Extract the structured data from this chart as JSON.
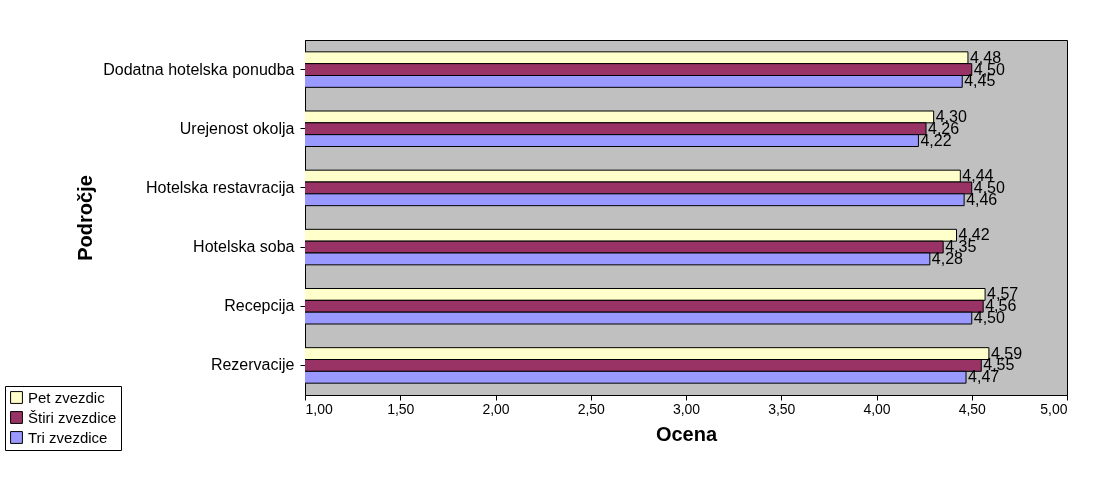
{
  "chart_data": {
    "type": "bar",
    "orientation": "horizontal",
    "xlabel": "Ocena",
    "ylabel": "Področje",
    "categories": [
      "Dodatna hotelska ponudba",
      "Urejenost okolja",
      "Hotelska restavracija",
      "Hotelska soba",
      "Recepcija",
      "Rezervacije"
    ],
    "series": [
      {
        "name": "Pet zvezdic",
        "color": "#ffffcc",
        "values": [
          4.48,
          4.3,
          4.44,
          4.42,
          4.57,
          4.59
        ],
        "value_labels": [
          "4,48",
          "4,30",
          "4,44",
          "4,42",
          "4,57",
          "4,59"
        ]
      },
      {
        "name": "Štiri zvezdice",
        "color": "#993366",
        "values": [
          4.5,
          4.26,
          4.5,
          4.35,
          4.56,
          4.55
        ],
        "value_labels": [
          "4,50",
          "4,26",
          "4,50",
          "4,35",
          "4,56",
          "4,55"
        ]
      },
      {
        "name": "Tri zvezdice",
        "color": "#9999ff",
        "values": [
          4.45,
          4.22,
          4.46,
          4.28,
          4.5,
          4.47
        ],
        "value_labels": [
          "4,45",
          "4,22",
          "4,46",
          "4,28",
          "4,50",
          "4,47"
        ]
      }
    ],
    "xlim": [
      1,
      5
    ],
    "xticks": [
      {
        "value": 1,
        "label": "1,00"
      },
      {
        "value": 1.5,
        "label": "1,50"
      },
      {
        "value": 2,
        "label": "2,00"
      },
      {
        "value": 2.5,
        "label": "2,50"
      },
      {
        "value": 3,
        "label": "3,00"
      },
      {
        "value": 3.5,
        "label": "3,50"
      },
      {
        "value": 4,
        "label": "4,00"
      },
      {
        "value": 4.5,
        "label": "4,50"
      },
      {
        "value": 5,
        "label": "5,00"
      }
    ],
    "legend": "bottom left"
  }
}
